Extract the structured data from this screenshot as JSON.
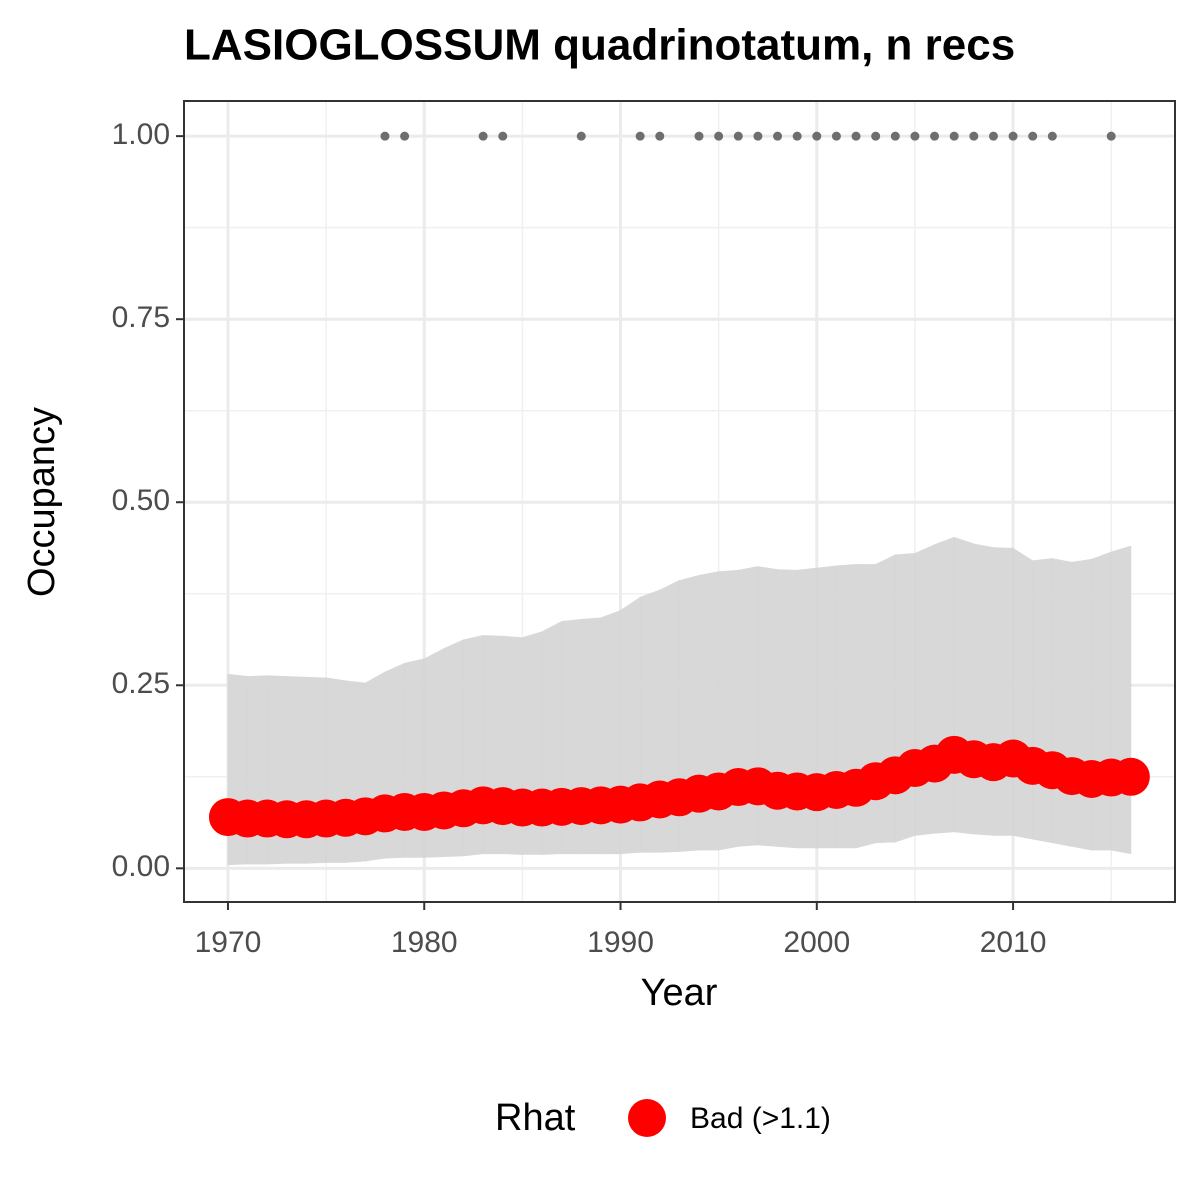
{
  "chart_data": {
    "type": "line",
    "title": "LASIOGLOSSUM quadrinotatum, n recs",
    "x_label": "Year",
    "y_label": "Occupancy",
    "x": [
      1970,
      1971,
      1972,
      1973,
      1974,
      1975,
      1976,
      1977,
      1978,
      1979,
      1980,
      1981,
      1982,
      1983,
      1984,
      1985,
      1986,
      1987,
      1988,
      1989,
      1990,
      1991,
      1992,
      1993,
      1994,
      1995,
      1996,
      1997,
      1998,
      1999,
      2000,
      2001,
      2002,
      2003,
      2004,
      2005,
      2006,
      2007,
      2008,
      2009,
      2010,
      2011,
      2012,
      2013,
      2014,
      2015,
      2016
    ],
    "series": [
      {
        "name": "Bad (>1.1)",
        "color": "#ff0000",
        "values": [
          0.07,
          0.068,
          0.068,
          0.067,
          0.067,
          0.068,
          0.069,
          0.071,
          0.075,
          0.077,
          0.077,
          0.079,
          0.082,
          0.086,
          0.085,
          0.083,
          0.083,
          0.084,
          0.085,
          0.086,
          0.087,
          0.09,
          0.094,
          0.097,
          0.102,
          0.105,
          0.111,
          0.112,
          0.106,
          0.105,
          0.104,
          0.107,
          0.11,
          0.119,
          0.127,
          0.137,
          0.143,
          0.155,
          0.149,
          0.145,
          0.15,
          0.14,
          0.134,
          0.126,
          0.122,
          0.124,
          0.125
        ]
      }
    ],
    "interval": {
      "color": "#d6d6d6",
      "lower": [
        0.005,
        0.006,
        0.006,
        0.007,
        0.007,
        0.008,
        0.008,
        0.01,
        0.014,
        0.015,
        0.015,
        0.016,
        0.017,
        0.02,
        0.02,
        0.019,
        0.019,
        0.02,
        0.02,
        0.02,
        0.02,
        0.022,
        0.022,
        0.023,
        0.025,
        0.025,
        0.03,
        0.032,
        0.03,
        0.028,
        0.028,
        0.028,
        0.028,
        0.035,
        0.036,
        0.045,
        0.048,
        0.05,
        0.047,
        0.045,
        0.045,
        0.04,
        0.035,
        0.03,
        0.025,
        0.025,
        0.02
      ],
      "upper": [
        0.265,
        0.262,
        0.263,
        0.262,
        0.261,
        0.26,
        0.256,
        0.253,
        0.268,
        0.28,
        0.286,
        0.3,
        0.312,
        0.318,
        0.317,
        0.315,
        0.323,
        0.337,
        0.34,
        0.342,
        0.352,
        0.37,
        0.38,
        0.393,
        0.4,
        0.405,
        0.407,
        0.412,
        0.408,
        0.407,
        0.41,
        0.413,
        0.415,
        0.415,
        0.428,
        0.43,
        0.442,
        0.452,
        0.443,
        0.438,
        0.437,
        0.42,
        0.423,
        0.418,
        0.422,
        0.432,
        0.44
      ]
    },
    "records": {
      "color": "#6e6e6e",
      "x": [
        1978,
        1979,
        1983,
        1984,
        1988,
        1991,
        1992,
        1994,
        1995,
        1996,
        1997,
        1998,
        1999,
        2000,
        2001,
        2002,
        2003,
        2004,
        2005,
        2006,
        2007,
        2008,
        2009,
        2010,
        2011,
        2012,
        2015
      ],
      "values": [
        1,
        1,
        1,
        1,
        1,
        1,
        1,
        1,
        1,
        1,
        1,
        1,
        1,
        1,
        1,
        1,
        1,
        1,
        1,
        1,
        1,
        1,
        1,
        1,
        1,
        1,
        1
      ]
    },
    "legend_title": "Rhat",
    "legend": "bottom",
    "xlim": [
      1967.76,
      2018.25
    ],
    "ylim": [
      -0.046,
      1.048
    ],
    "xticks": [
      1970,
      1980,
      1990,
      2000,
      2010
    ],
    "yticks": [
      {
        "value": 0,
        "label": "0.00"
      },
      {
        "value": 0.25,
        "label": "0.25"
      },
      {
        "value": 0.5,
        "label": "0.50"
      },
      {
        "value": 0.75,
        "label": "0.75"
      },
      {
        "value": 1,
        "label": "1.00"
      }
    ],
    "minor_xticks": [
      1975,
      1985,
      1995,
      2005,
      2015
    ],
    "minor_yticks": [
      0.125,
      0.375,
      0.625,
      0.875
    ],
    "grid": true
  }
}
